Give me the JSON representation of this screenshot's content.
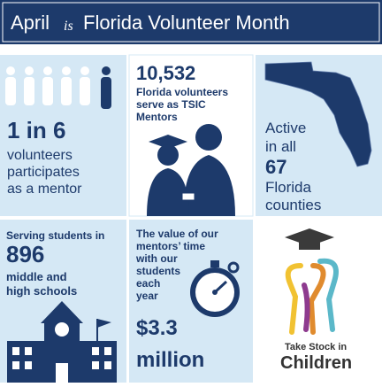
{
  "header": {
    "before": "April",
    "script": "is",
    "after": "Florida Volunteer Month"
  },
  "cells": [
    {
      "stat": "1 in 6",
      "lines": [
        "volunteers",
        "participates",
        "as a mentor"
      ]
    },
    {
      "stat": "10,532",
      "lines": [
        "Florida volunteers",
        "serve as TSIC",
        "Mentors"
      ]
    },
    {
      "lines_before": [
        "Active",
        "in all"
      ],
      "stat": "67",
      "lines_after": [
        "Florida",
        "counties"
      ]
    },
    {
      "lines_before": [
        "Serving students in"
      ],
      "stat": "896",
      "lines_after": [
        "middle and",
        "high schools"
      ]
    },
    {
      "lines": [
        "The value of our",
        "mentors’ time",
        "with our",
        "students",
        "each",
        "year"
      ],
      "stat_lines": [
        "$3.3",
        "million"
      ]
    },
    {
      "logo_top": "Take Stock in",
      "logo_bottom": "Children"
    }
  ]
}
